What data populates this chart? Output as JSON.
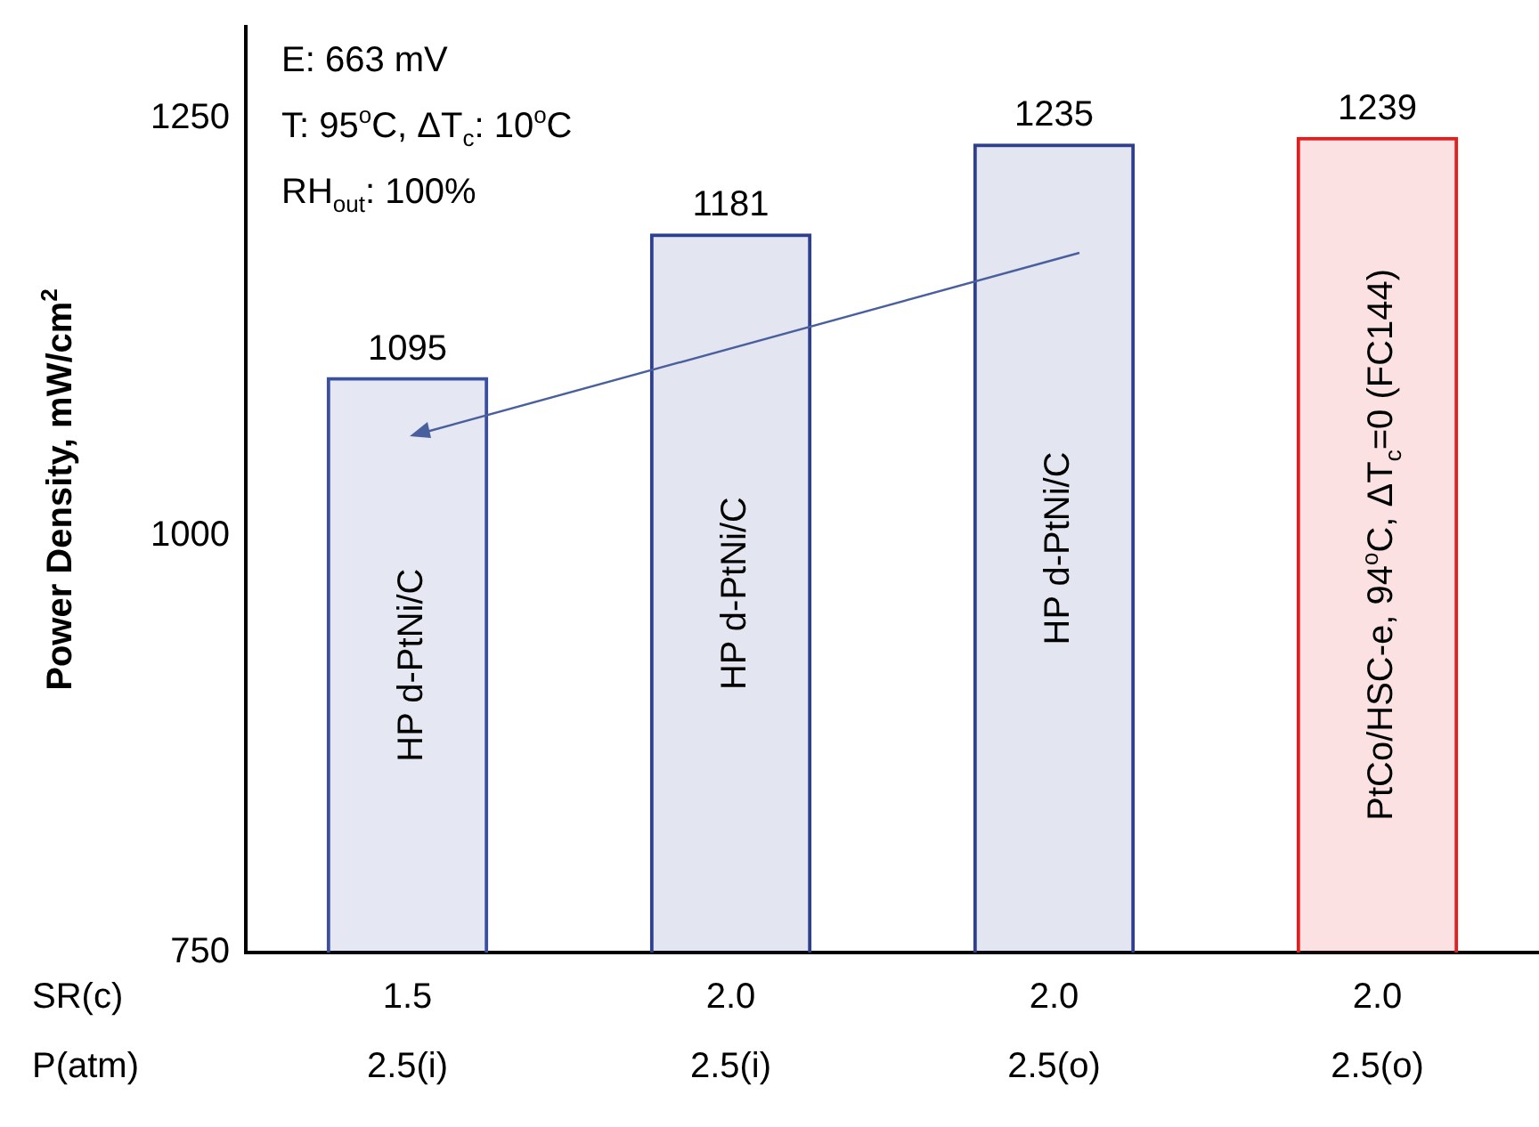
{
  "chart_data": {
    "type": "bar",
    "categories": [
      "1.5\n2.5(i)",
      "2.0\n2.5(i)",
      "2.0\n2.5(o)",
      "2.0\n2.5(o)"
    ],
    "values": [
      1095,
      1181,
      1235,
      1239
    ],
    "colors": [
      "#3a4f9e",
      "#2f3f8f",
      "#2f3f8f",
      "#e02020"
    ],
    "ylabel": "Power Density, mW/cm$^{2}$",
    "ylim": [
      750,
      1305
    ],
    "yticks": [
      750,
      1000,
      1250
    ],
    "grid": false,
    "legend": false,
    "data_labels": true,
    "annotations": [
      "E: 663 mV",
      "T: 95$^{o}$C, ΔT$_{c}$: 10$^{o}$C",
      "RH$_{out}$: 100%",
      "SR(c)",
      "P(atm)",
      "HP d-PtNi/C",
      "HP d-PtNi/C",
      "HP d-PtNi/C",
      "PtCo/HSC-e, 94$^{o}$C, ΔT$_{c}$=0 (FC144)"
    ]
  }
}
